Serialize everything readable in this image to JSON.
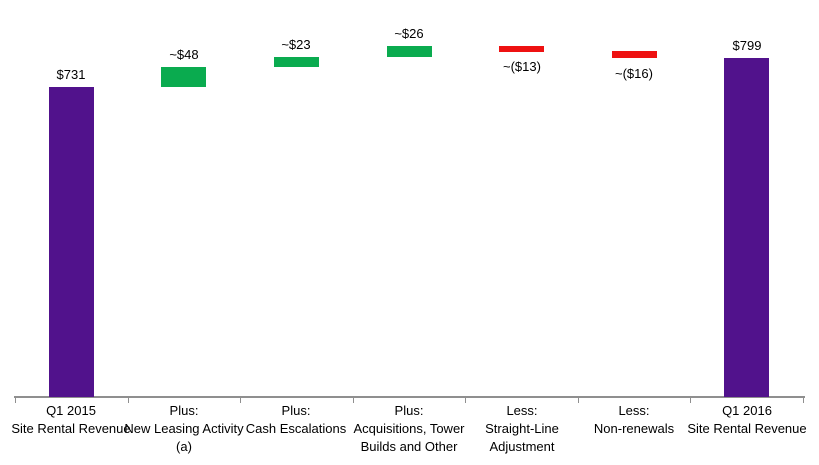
{
  "chart_data": {
    "type": "bar",
    "variant": "waterfall",
    "title": "",
    "xlabel": "",
    "ylabel": "",
    "ylim": [
      0,
      935
    ],
    "grid": false,
    "legend": false,
    "axis_color": "#8f8f8f",
    "text_color": "#000000",
    "colors": {
      "total": "#51128c",
      "increase": "#0aab4f",
      "decrease": "#ee1111"
    },
    "categories": [
      [
        "Q1 2015",
        "Site Rental Revenue"
      ],
      [
        "Plus:",
        "New Leasing Activity",
        "(a)"
      ],
      [
        "Plus:",
        "Cash Escalations"
      ],
      [
        "Plus:",
        "Acquisitions, Tower",
        "Builds and Other"
      ],
      [
        "Less:",
        "Straight-Line",
        "Adjustment"
      ],
      [
        "Less:",
        "Non-renewals"
      ],
      [
        "Q1 2016",
        "Site Rental Revenue"
      ]
    ],
    "values": [
      731,
      48,
      23,
      26,
      -13,
      -16,
      799
    ],
    "bar_labels": [
      "$731",
      "~$48",
      "~$23",
      "~$26",
      "~($13)",
      "~($16)",
      "$799"
    ],
    "bar_roles": [
      "total",
      "increase",
      "increase",
      "increase",
      "decrease",
      "decrease",
      "total"
    ]
  }
}
